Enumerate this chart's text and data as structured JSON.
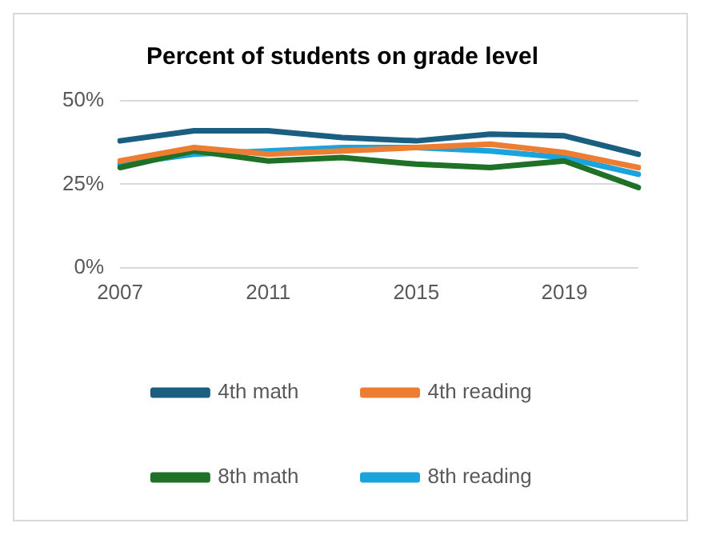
{
  "chart_data": {
    "type": "line",
    "title": "Percent of students on grade level",
    "categories": [
      "2007",
      null,
      "2011",
      null,
      "2015",
      null,
      "2019",
      null
    ],
    "series": [
      {
        "name": "4th math",
        "color": "#1a5e80",
        "values": [
          38,
          41,
          41,
          39,
          38,
          40,
          39.5,
          34
        ]
      },
      {
        "name": "4th reading",
        "color": "#ed7d31",
        "values": [
          32,
          36,
          34,
          35,
          36,
          37,
          34.5,
          30
        ]
      },
      {
        "name": "8th math",
        "color": "#1e7126",
        "values": [
          30,
          35,
          32,
          33,
          31,
          30,
          32,
          24
        ]
      },
      {
        "name": "8th reading",
        "color": "#1aa3dc",
        "values": [
          31,
          34,
          35,
          36,
          36,
          35,
          33,
          28
        ]
      }
    ],
    "ylim": [
      0,
      50
    ],
    "yticks": [
      {
        "value": 0,
        "label": "0%"
      },
      {
        "value": 25,
        "label": "25%"
      },
      {
        "value": 50,
        "label": "50%"
      }
    ],
    "grid": "y",
    "legend": "bottom",
    "marker": "none",
    "line_style": "solid"
  }
}
